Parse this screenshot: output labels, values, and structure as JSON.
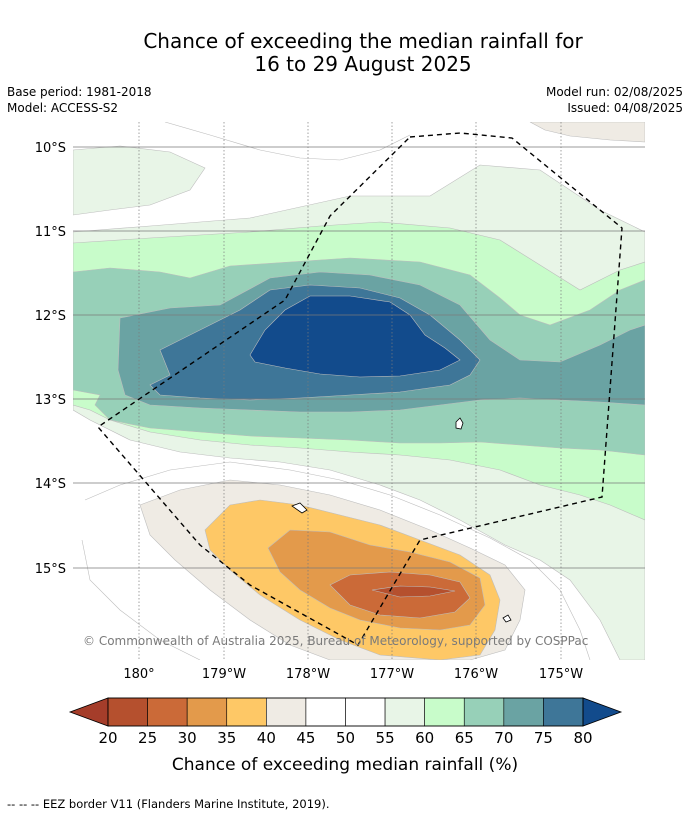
{
  "title": {
    "line1": "Chance of exceeding the median rainfall for",
    "line2": "16 to 29 August 2025"
  },
  "meta": {
    "base_period": "Base period: 1981-2018",
    "model": "Model: ACCESS-S2",
    "model_run": "Model run: 02/08/2025",
    "issued": "Issued: 04/08/2025"
  },
  "map": {
    "lat_labels": [
      "10°S",
      "11°S",
      "12°S",
      "13°S",
      "14°S",
      "15°S"
    ],
    "lon_labels": [
      "180°",
      "179°W",
      "178°W",
      "177°W",
      "176°W",
      "175°W"
    ],
    "copyright": "© Commonwealth of Australia 2025, Bureau of Meteorology, supported by COSPPac"
  },
  "colorbar": {
    "ticks": [
      "20",
      "25",
      "30",
      "35",
      "40",
      "45",
      "50",
      "55",
      "60",
      "65",
      "70",
      "75",
      "80"
    ],
    "label": "Chance of exceeding median rainfall (%)",
    "colors": [
      "#a53d2a",
      "#b5502e",
      "#cb6a38",
      "#e39a4b",
      "#fec866",
      "#efebe4",
      "#ffffff",
      "#ffffff",
      "#e8f5e7",
      "#c8fcca",
      "#97d0b8",
      "#6aa3a3",
      "#3e7698",
      "#124b8c"
    ]
  },
  "footer": "--  --  -- EEZ border V11 (Flanders Marine Institute, 2019)."
}
